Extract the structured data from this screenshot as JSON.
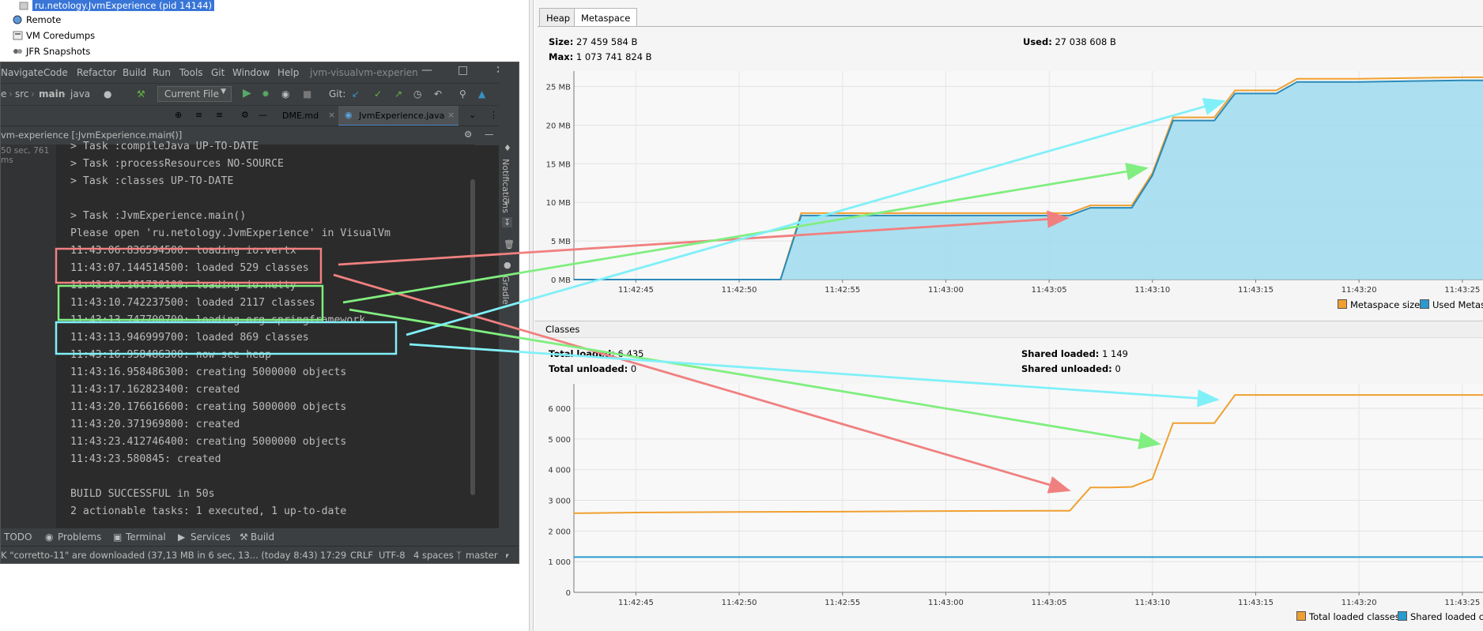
{
  "tree": {
    "selected": "ru.netology.JvmExperience (pid 14144)",
    "items": [
      "Remote",
      "VM Coredumps",
      "JFR Snapshots"
    ]
  },
  "ide": {
    "menu": [
      "Navigate",
      "Code",
      "Refactor",
      "Build",
      "Run",
      "Tools",
      "Git",
      "Window",
      "Help"
    ],
    "project": "jvm-visualvm-experien",
    "breadcrumb": [
      "e",
      "src",
      "main",
      "java"
    ],
    "run_config": "Current File",
    "git_label": "Git:",
    "tabs": [
      "DME.md",
      "JvmExperience.java"
    ],
    "run_title": "vm-experience [:JvmExperience.main()]",
    "run_time": "50 sec, 761 ms",
    "side_labels": [
      "Notifications",
      "Gradle"
    ],
    "console_lines": [
      "> Task :compileJava UP-TO-DATE",
      "> Task :processResources NO-SOURCE",
      "> Task :classes UP-TO-DATE",
      "",
      "> Task :JvmExperience.main()",
      "Please open 'ru.netology.JvmExperience' in VisualVm",
      "11:43:06.836594500: loading io.vertx",
      "11:43:07.144514500: loaded 529 classes",
      "11:43:10.161730100: loading io.netty",
      "11:43:10.742237500: loaded 2117 classes",
      "11:43:13.747700700: loading org.springframework",
      "11:43:13.946999700: loaded 869 classes",
      "11:43:16.958486300: now see heap",
      "11:43:16.958486300: creating 5000000 objects",
      "11:43:17.162823400: created",
      "11:43:20.176616600: creating 5000000 objects",
      "11:43:20.371969800: created",
      "11:43:23.412746400: creating 5000000 objects",
      "11:43:23.580845: created",
      "",
      "BUILD SUCCESSFUL in 50s",
      "2 actionable tasks: 1 executed, 1 up-to-date"
    ],
    "bottom_tabs": [
      "TODO",
      "Problems",
      "Terminal",
      "Services",
      "Build"
    ],
    "status": {
      "message": "K \"corretto-11\" are downloaded (37,13 MB in 6 sec, 13... (today 8:43)",
      "pos": "17:29",
      "eol": "CRLF",
      "enc": "UTF-8",
      "indent": "4 spaces",
      "branch": "master"
    }
  },
  "monitor": {
    "tabs": [
      "Heap",
      "Metaspace"
    ],
    "metaspace": {
      "size_label": "Size:",
      "size": "27 459 584 B",
      "used_label": "Used:",
      "used": "27 038 608 B",
      "max_label": "Max:",
      "max": "1 073 741 824 B"
    },
    "classes_title": "Classes",
    "classes": {
      "total_loaded_label": "Total loaded:",
      "total_loaded": "6 435",
      "total_unloaded_label": "Total unloaded:",
      "total_unloaded": "0",
      "shared_loaded_label": "Shared loaded:",
      "shared_loaded": "1 149",
      "shared_unloaded_label": "Shared unloaded:",
      "shared_unloaded": "0"
    },
    "legend_metaspace": [
      "Metaspace size",
      "Used Metasp"
    ],
    "legend_classes": [
      "Total loaded classes",
      "Shared loaded clas"
    ],
    "colors": {
      "size": "#f0a030",
      "used": "#9fdcef",
      "used_line": "#2a8ab8",
      "shared": "#2a9ad0"
    }
  },
  "chart_data": [
    {
      "type": "area",
      "x": [
        "11:42:42",
        "11:42:45",
        "11:42:50",
        "11:42:52",
        "11:42:53",
        "11:42:55",
        "11:43:00",
        "11:43:05",
        "11:43:06",
        "11:43:07",
        "11:43:08",
        "11:43:09",
        "11:43:10",
        "11:43:11",
        "11:43:13",
        "11:43:14",
        "11:43:16",
        "11:43:17",
        "11:43:20",
        "11:43:25",
        "11:43:26"
      ],
      "series": [
        {
          "name": "Metaspace size",
          "values": [
            0,
            0,
            0,
            0,
            8.6,
            8.6,
            8.6,
            8.6,
            8.6,
            9.6,
            9.6,
            9.6,
            13.8,
            21.0,
            21.0,
            24.5,
            24.5,
            26.0,
            26.0,
            26.2,
            26.2
          ]
        },
        {
          "name": "Used Metasp",
          "values": [
            0,
            0,
            0,
            0,
            8.3,
            8.3,
            8.3,
            8.3,
            8.3,
            9.3,
            9.3,
            9.3,
            13.5,
            20.6,
            20.6,
            24.1,
            24.1,
            25.6,
            25.6,
            25.8,
            25.8
          ]
        }
      ],
      "xticks": [
        "11:42:45",
        "11:42:50",
        "11:42:55",
        "11:43:00",
        "11:43:05",
        "11:43:10",
        "11:43:15",
        "11:43:20",
        "11:43:25"
      ],
      "yticks": [
        "0 MB",
        "5 MB",
        "10 MB",
        "15 MB",
        "20 MB",
        "25 MB"
      ],
      "ylim": [
        0,
        27
      ]
    },
    {
      "type": "line",
      "x": [
        "11:42:42",
        "11:42:45",
        "11:42:50",
        "11:42:55",
        "11:43:00",
        "11:43:05",
        "11:43:06",
        "11:43:07",
        "11:43:08",
        "11:43:09",
        "11:43:10",
        "11:43:11",
        "11:43:13",
        "11:43:14",
        "11:43:20",
        "11:43:26"
      ],
      "series": [
        {
          "name": "Total loaded classes",
          "values": [
            2580,
            2600,
            2620,
            2630,
            2650,
            2660,
            2660,
            3420,
            3420,
            3440,
            3700,
            5520,
            5520,
            6435,
            6435,
            6435
          ]
        },
        {
          "name": "Shared loaded clas",
          "values": [
            1149,
            1149,
            1149,
            1149,
            1149,
            1149,
            1149,
            1149,
            1149,
            1149,
            1149,
            1149,
            1149,
            1149,
            1149,
            1149
          ]
        }
      ],
      "xticks": [
        "11:42:45",
        "11:42:50",
        "11:42:55",
        "11:43:00",
        "11:43:05",
        "11:43:10",
        "11:43:15",
        "11:43:20",
        "11:43:25"
      ],
      "yticks": [
        "0",
        "1 000",
        "2 000",
        "3 000",
        "4 000",
        "5 000",
        "6 000"
      ],
      "ylim": [
        0,
        6800
      ]
    }
  ]
}
